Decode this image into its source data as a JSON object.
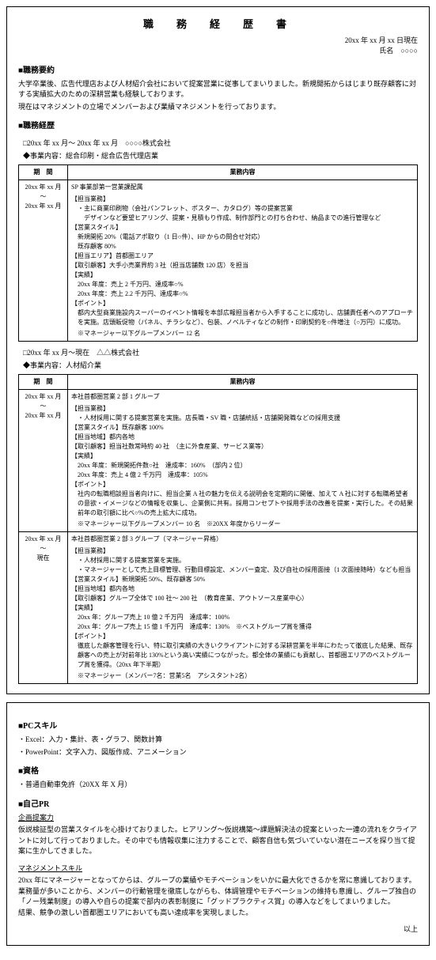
{
  "title": "職　務　経　歴　書",
  "date_line": "20xx 年 xx 月 xx 日現在",
  "name_line": "氏名　○○○○",
  "summary_h": "■職務要約",
  "summary_lines": [
    "大学卒業後、広告代理店および人材紹介会社において提案営業に従事してまいりました。新規開拓からはじまり既存顧客に対する実績拡大のための深耕営業も経験しております。",
    "現在はマネジメントの立場でメンバーおよび業績マネジメントを行っております。"
  ],
  "history_h": "■職務経歴",
  "job1": {
    "period_title": "□20xx 年 xx 月～ 20xx 年 xx 月　○○○○株式会社",
    "desc": "◆事業内容：総合印刷・総合広告代理店業",
    "th_period": "期　間",
    "th_content": "業務内容",
    "period": "20xx 年 xx 月\n～\n20xx 年 xx 月",
    "dept": "SP 事業部第一営業課配属",
    "rows": {
      "r1_label": "【担当業務】",
      "r1_l1": "・主に商業印刷物（会社パンフレット、ポスター、カタログ）等の提案営業",
      "r1_l2": "　デザインなど要望ヒアリング、提案・見積もり作成、制作部門との打ち合わせ、納品までの進行管理など",
      "r2_label": "【営業スタイル】",
      "r2_l1": "新規開拓 20%（電話アポ取り（1 日○件）、HP からの問合せ対応）",
      "r2_l2": "既存顧客 80%",
      "r3_label": "【担当エリア】首都圏エリア",
      "r4_label": "【取引顧客】大手小売業界約 3 社（担当店舗数 120 店）を担当",
      "r5_label": "【実績】",
      "r5_l1": "20xx 年度：売上 2 千万円、達成率○%",
      "r5_l2": "20xx 年度：売上 2.2 千万円、達成率○%",
      "r6_label": "【ポイント】",
      "r6_l1": "都内大型商業施設内スーパーのイベント情報を本部広報担当者から入手することに成功し、店舗責任者へのアプローチを実施。店頭販促物（パネル、チラシなど）、包装、ノベルティなどの制作・印刷契約を○件増注（○万円）に成功。",
      "note": "※マネージャー以下グループメンバー 12 名"
    }
  },
  "job2": {
    "period_title": "□20xx 年 xx 月～現在　△△株式会社",
    "desc": "◆事業内容：人材紹介業",
    "th_period": "期　間",
    "th_content": "業務内容",
    "row1": {
      "period": "20xx 年 xx 月\n～\n20xx 年 xx 月",
      "dept": "本社首都圏営業 2 部 1 グループ",
      "r1_label": "【担当業務】",
      "r1_l1": "・人材採用に関する提案営業を実施。店長職・SV 職・店舗統括・店舗開発職などの採用支援",
      "r2_label": "【営業スタイル】既存顧客 100%",
      "r3_label": "【担当地域】都内各地",
      "r4_label": "【取引顧客】担当社数常時約 40 社　（主に外食産業、サービス業等）",
      "r5_label": "【実績】",
      "r5_l1": "20xx 年度：新規開拓件数○社　達成率：160%　（部内 2 位）",
      "r5_l2": "20xx 年度：売上 4 億 2 千万円　達成率：105%",
      "r6_label": "【ポイント】",
      "r6_l1": "社内の転職相談担当者向けに、担当企業 A 社の魅力を伝える説明会を定期的に開催、加えて A 社に対する転職希望者の意欲・イメージなどの情報を収集し、企業側に共有。採用コンセプトや採用手法の改善を提案・実行した。その結果前年の取引額に比べ○%の売上拡大に成功。",
      "note": "※マネージャー以下グループメンバー 10 名　※20XX 年度からリーダー"
    },
    "row2": {
      "period": "20xx 年 xx 月\n～\n現在",
      "dept": "本社首都圏営業 2 部 3 グループ（マネージャー昇格）",
      "r1_label": "【担当業務】",
      "r1_l1": "・人材採用に関する提案営業を実施。",
      "r1_l2": "・マネージャーとして売上目標管理、行動目標設定、メンバー査定、及び自社の採用面接（1 次面接随時）なども担当",
      "r2_label": "【営業スタイル】新規開拓 50%、既存顧客 50%",
      "r3_label": "【担当地域】都内各地",
      "r4_label": "【取引顧客】グループ全体で 100 社～ 200 社　（教育産業、アウトソース産業中心）",
      "r5_label": "【実績】",
      "r5_l1": "20xx 年：グループ売上 10 億 2 千万円　達成率：100%",
      "r5_l2": "20xx 年：グループ売上 15 億 1 千万円　達成率：130%　※ベストグループ賞を獲得",
      "r6_label": "【ポイント】",
      "r6_l1": "徹底した顧客管理を行い、特に取引実績の大きいクライアントに対する深耕営業を半年にわたって徹底した結果、既存顧客への売上が対前年比 130%という高い実績につながった。都全体の業績にも貢献し、首都圏エリアのベストグループ賞を獲得。（20xx 年下半期）",
      "note": "※マネージャー（メンバー7名：営業5名　アシスタント2名）"
    }
  },
  "page2": {
    "pc_h": "■PCスキル",
    "pc_l1": "・Excel：入力・集計、表・グラフ、関数計算",
    "pc_l2": "・PowerPoint：文字入力、図版作成、アニメーション",
    "lic_h": "■資格",
    "lic_l1": "・普通自動車免許（20XX 年 X 月）",
    "pr_h": "■自己PR",
    "pr1_title": "企画提案力",
    "pr1_body": "仮説検証型の営業スタイルを心掛けておりました。ヒアリング～仮説構築～課題解決法の提案といった一連の流れをクライアントに対して行っておりました。その中でも情報収集に注力することで、顧客自信も気づいていない潜在ニーズを探り当て提案に生かしてきました。",
    "pr2_title": "マネジメントスキル",
    "pr2_body": "20xx 年にマネージャーとなってからは、グループの業績やモチベーションをいかに最大化できるかを常に意識しております。業務量が多いことから、メンバーの行動管理を徹底しながらも、体調管理やモチベーションの維持も意識し、グループ独自の「ノー残業制度」の導入や自らの提案で部内の表彰制度に「グッドプラクティス賞」の導入などをしてまいりました。",
    "pr2_body2": "結果、競争の激しい首都圏エリアにおいても高い達成率を実現しました。",
    "end": "以上"
  }
}
